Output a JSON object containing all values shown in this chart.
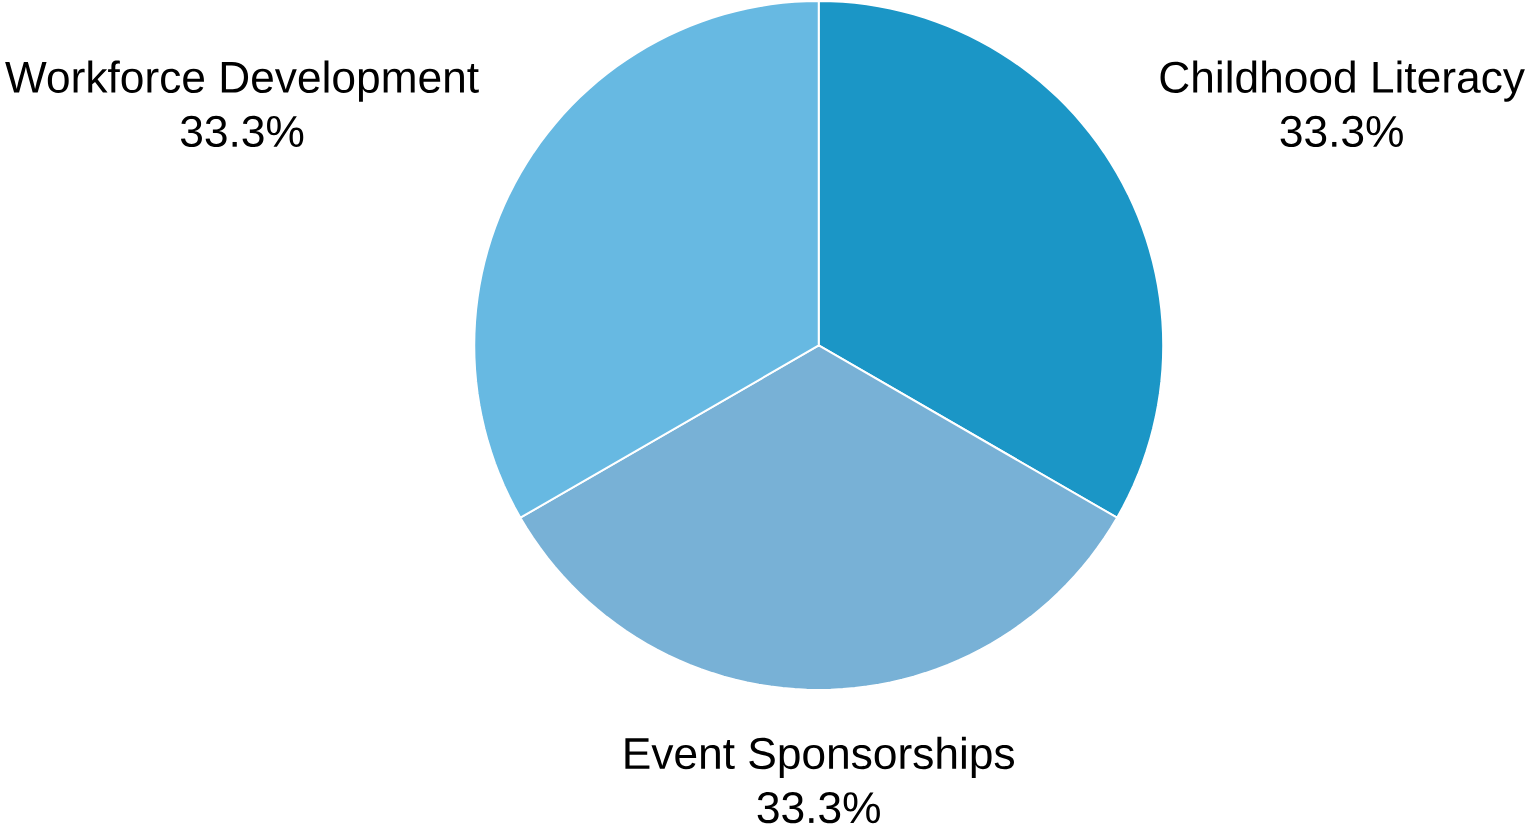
{
  "chart_data": {
    "type": "pie",
    "categories": [
      "Childhood Literacy",
      "Event Sponsorships",
      "Workforce Development"
    ],
    "values": [
      33.3,
      33.3,
      33.3
    ],
    "colors": [
      "#1b96c6",
      "#78b1d6",
      "#67b9e2"
    ],
    "value_labels": [
      "33.3%",
      "33.3%",
      "33.3%"
    ]
  }
}
